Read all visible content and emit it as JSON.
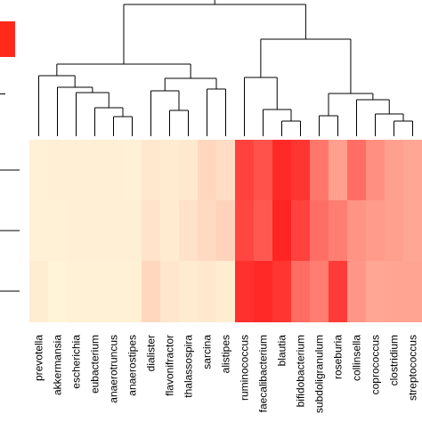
{
  "chart_data": {
    "type": "heatmap",
    "title": "",
    "xlabel": "",
    "ylabel": "",
    "row_labels": [
      "",
      "",
      ""
    ],
    "columns": [
      "prevotella",
      "akkermansia",
      "escherichia",
      "eubacterium",
      "anaerotruncus",
      "anaerostipes",
      "dialister",
      "flavonifractor",
      "thalassospira",
      "sarcina",
      "alistipes",
      "ruminococcus",
      "faecalibacterium",
      "blautia",
      "bifidobacterium",
      "subdoligranulum",
      "roseburia",
      "collinsella",
      "coprococcus",
      "clostridium",
      "streptococcus"
    ],
    "values": [
      [
        0.03,
        0.04,
        0.04,
        0.04,
        0.04,
        0.03,
        0.07,
        0.06,
        0.07,
        0.15,
        0.12,
        0.82,
        0.75,
        0.93,
        0.88,
        0.58,
        0.4,
        0.62,
        0.47,
        0.4,
        0.37
      ],
      [
        0.03,
        0.03,
        0.04,
        0.04,
        0.04,
        0.04,
        0.09,
        0.06,
        0.1,
        0.14,
        0.17,
        0.8,
        0.72,
        0.95,
        0.82,
        0.62,
        0.55,
        0.45,
        0.42,
        0.4,
        0.37
      ],
      [
        0.05,
        0.02,
        0.03,
        0.03,
        0.03,
        0.03,
        0.15,
        0.08,
        0.06,
        0.07,
        0.05,
        0.9,
        0.93,
        0.88,
        0.63,
        0.55,
        0.85,
        0.44,
        0.37,
        0.38,
        0.38
      ]
    ],
    "color_scale": {
      "low": "#fff8dc",
      "high": "#ff1a1a"
    },
    "legend": "top-left"
  }
}
